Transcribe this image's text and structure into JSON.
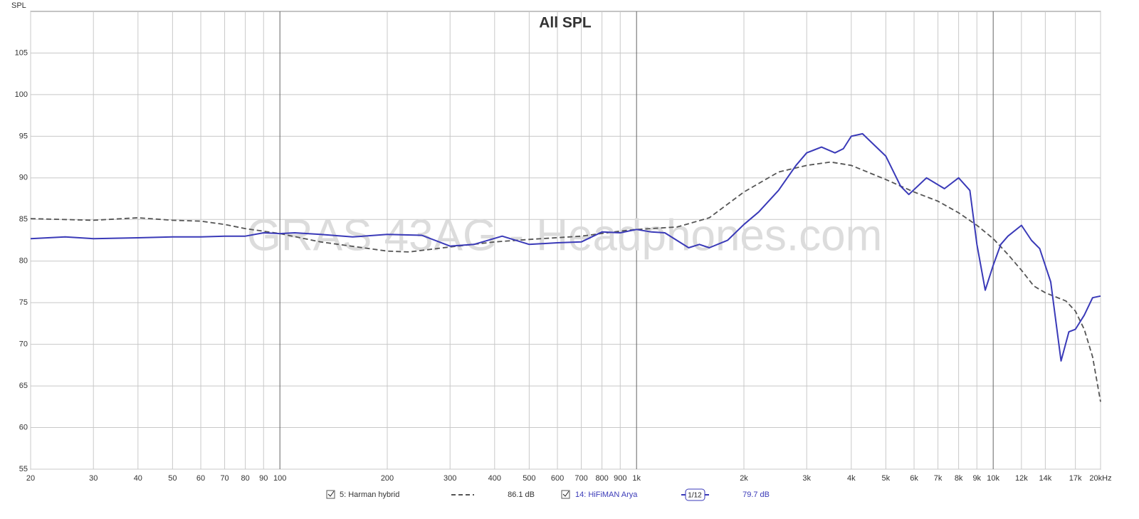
{
  "chart_data": {
    "type": "line",
    "title": "All SPL",
    "y_label": "SPL",
    "watermark": "GRAS 43AG - Headphones.com",
    "x_scale": "log",
    "grid": true,
    "xlim": [
      20,
      20000
    ],
    "ylim": [
      55,
      110
    ],
    "xticks": [
      20,
      30,
      40,
      50,
      60,
      70,
      80,
      90,
      100,
      200,
      300,
      400,
      500,
      600,
      700,
      800,
      900,
      {
        "value": 1000,
        "label": "1k"
      },
      {
        "value": 2000,
        "label": "2k"
      },
      {
        "value": 3000,
        "label": "3k"
      },
      {
        "value": 4000,
        "label": "4k"
      },
      {
        "value": 5000,
        "label": "5k"
      },
      {
        "value": 6000,
        "label": "6k"
      },
      {
        "value": 7000,
        "label": "7k"
      },
      {
        "value": 8000,
        "label": "8k"
      },
      {
        "value": 9000,
        "label": "9k"
      },
      {
        "value": 10000,
        "label": "10k"
      },
      {
        "value": 12000,
        "label": "12k"
      },
      {
        "value": 14000,
        "label": "14k"
      },
      {
        "value": 17000,
        "label": "17k"
      },
      {
        "value": 20000,
        "label": "20kHz"
      }
    ],
    "yticks": [
      55,
      60,
      65,
      70,
      75,
      80,
      85,
      90,
      95,
      100,
      105
    ],
    "series": [
      {
        "name": "5: Harman hybrid",
        "color": "#555555",
        "dash": true,
        "level_label": "86.1 dB",
        "x": [
          20,
          30,
          40,
          50,
          60,
          70,
          80,
          100,
          130,
          200,
          230,
          300,
          400,
          500,
          700,
          900,
          1000,
          1300,
          1600,
          2000,
          2500,
          3000,
          3500,
          4000,
          5000,
          6000,
          7000,
          8000,
          9000,
          10000,
          11000,
          12000,
          13000,
          14000,
          16000,
          17000,
          18000,
          19000,
          20000
        ],
        "values": [
          85.1,
          84.9,
          85.2,
          84.9,
          84.8,
          84.4,
          83.9,
          83.3,
          82.3,
          81.2,
          81.1,
          81.7,
          82.3,
          82.6,
          83.0,
          83.6,
          83.8,
          84.1,
          85.2,
          88.3,
          90.7,
          91.5,
          91.9,
          91.5,
          89.8,
          88.3,
          87.2,
          85.8,
          84.3,
          82.7,
          80.8,
          78.9,
          77.0,
          76.2,
          75.2,
          74.0,
          71.8,
          68.5,
          63.1
        ]
      },
      {
        "name": "14: HiFiMAN Arya",
        "color": "#3a3ab8",
        "dash": false,
        "level_label": "79.7 dB",
        "smoothing": "1/12",
        "x": [
          20,
          25,
          30,
          40,
          50,
          60,
          70,
          80,
          90,
          100,
          110,
          130,
          160,
          200,
          250,
          300,
          350,
          420,
          500,
          600,
          700,
          800,
          900,
          1000,
          1100,
          1200,
          1400,
          1500,
          1600,
          1800,
          2000,
          2200,
          2500,
          2800,
          3000,
          3300,
          3600,
          3800,
          4000,
          4300,
          5000,
          5500,
          5800,
          6500,
          7300,
          8000,
          8600,
          9000,
          9500,
          10000,
          10500,
          11000,
          12000,
          12800,
          13500,
          14500,
          15500,
          16300,
          17000,
          18000,
          19000,
          20000
        ],
        "values": [
          82.7,
          82.9,
          82.7,
          82.8,
          82.9,
          82.9,
          83.0,
          83.0,
          83.4,
          83.3,
          83.4,
          83.2,
          82.9,
          83.2,
          83.1,
          81.8,
          82.0,
          83.0,
          82.0,
          82.2,
          82.3,
          83.5,
          83.4,
          83.8,
          83.5,
          83.4,
          81.6,
          82.0,
          81.6,
          82.5,
          84.4,
          85.9,
          88.5,
          91.5,
          93.0,
          93.7,
          93.0,
          93.5,
          95.0,
          95.3,
          92.6,
          89.0,
          88.0,
          90.0,
          88.7,
          90.0,
          88.5,
          82.0,
          76.5,
          79.5,
          82.0,
          83.0,
          84.3,
          82.5,
          81.5,
          77.5,
          68.0,
          71.5,
          71.8,
          73.5,
          75.6,
          75.8
        ]
      }
    ]
  }
}
